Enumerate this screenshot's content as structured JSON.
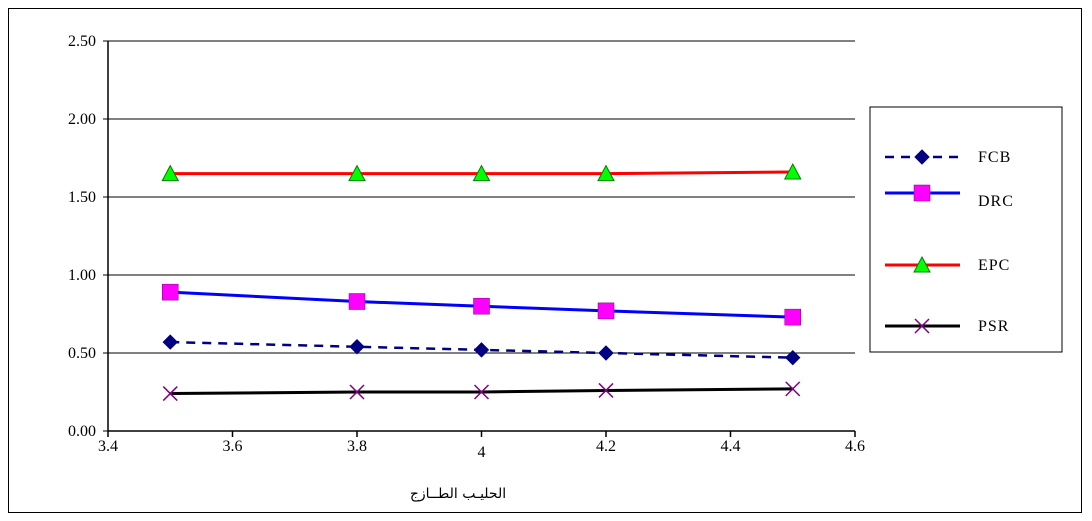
{
  "chart_data": {
    "type": "line",
    "xlabel": "الحليـب الطــازج",
    "ylabel": "",
    "xlim": [
      3.4,
      4.6
    ],
    "ylim": [
      0,
      2.5
    ],
    "x_ticks": [
      "3.4",
      "3.6",
      "3.8",
      "4",
      "4.2",
      "4.4",
      "4.6"
    ],
    "y_ticks": [
      "0.00",
      "0.50",
      "1.00",
      "1.50",
      "2.00",
      "2.50"
    ],
    "grid": "horizontal",
    "legend_position": "right",
    "x": [
      3.5,
      3.8,
      4.0,
      4.2,
      4.5
    ],
    "series": [
      {
        "name": "FCB",
        "values": [
          0.57,
          0.54,
          0.52,
          0.5,
          0.47
        ],
        "color": "#000080",
        "marker": "diamond",
        "marker_color": "#000080",
        "line": "dashed"
      },
      {
        "name": "DRC",
        "values": [
          0.89,
          0.83,
          0.8,
          0.77,
          0.73
        ],
        "color": "#0000FF",
        "marker": "square",
        "marker_color": "#FF00FF",
        "line": "solid"
      },
      {
        "name": "EPC",
        "values": [
          1.65,
          1.65,
          1.65,
          1.65,
          1.66
        ],
        "color": "#FF0000",
        "marker": "triangle",
        "marker_color": "#00FF00",
        "line": "solid"
      },
      {
        "name": "PSR",
        "values": [
          0.24,
          0.25,
          0.25,
          0.26,
          0.27
        ],
        "color": "#000000",
        "marker": "cross",
        "marker_color": "#800080",
        "line": "solid"
      }
    ]
  }
}
